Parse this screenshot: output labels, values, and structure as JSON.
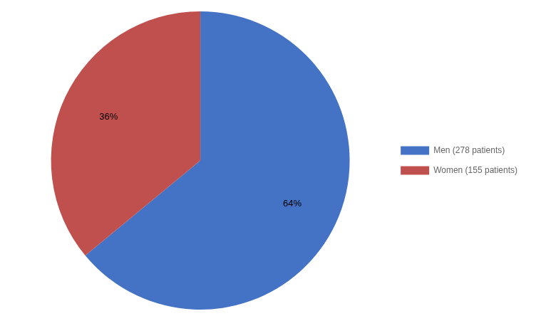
{
  "chart_data": {
    "type": "pie",
    "categories": [
      "Men (278 patients)",
      "Women (155 patients)"
    ],
    "values": [
      64,
      36
    ],
    "value_labels": [
      "64%",
      "36%"
    ],
    "colors": [
      "#4472C4",
      "#C0504D"
    ],
    "data_labels": true,
    "legend": "right"
  }
}
